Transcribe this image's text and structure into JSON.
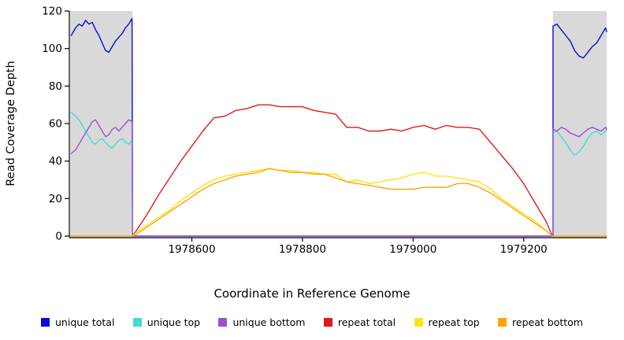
{
  "chart_data": {
    "type": "line",
    "title": "",
    "xlabel": "Coordinate in Reference Genome",
    "ylabel": "Read Coverage Depth",
    "xlim": [
      1978380,
      1979350
    ],
    "ylim": [
      0,
      120
    ],
    "xticks": [
      1978600,
      1978800,
      1979000,
      1979200
    ],
    "yticks": [
      0,
      20,
      40,
      60,
      80,
      100,
      120
    ],
    "grid": false,
    "legend_position": "bottom",
    "background_color": "#ffffff",
    "shaded_region_color": "#d9d9d9",
    "shaded_regions": [
      {
        "x0": 1978380,
        "x1": 1978493,
        "color": "#d9d9d9"
      },
      {
        "x0": 1979253,
        "x1": 1979350,
        "color": "#d9d9d9"
      }
    ],
    "series": [
      {
        "name": "unique total",
        "color": "#0b0bd6",
        "points": [
          [
            1978382,
            107
          ],
          [
            1978390,
            111
          ],
          [
            1978396,
            113
          ],
          [
            1978402,
            112
          ],
          [
            1978408,
            115
          ],
          [
            1978414,
            113
          ],
          [
            1978420,
            114
          ],
          [
            1978426,
            110
          ],
          [
            1978432,
            107
          ],
          [
            1978438,
            103
          ],
          [
            1978444,
            99
          ],
          [
            1978450,
            98
          ],
          [
            1978456,
            101
          ],
          [
            1978462,
            104
          ],
          [
            1978468,
            106
          ],
          [
            1978474,
            108
          ],
          [
            1978480,
            111
          ],
          [
            1978486,
            113
          ],
          [
            1978492,
            116
          ],
          [
            1978493,
            0
          ],
          [
            1979253,
            0
          ],
          [
            1979253,
            112
          ],
          [
            1979260,
            113
          ],
          [
            1979268,
            110
          ],
          [
            1979276,
            107
          ],
          [
            1979284,
            104
          ],
          [
            1979292,
            99
          ],
          [
            1979300,
            96
          ],
          [
            1979308,
            95
          ],
          [
            1979316,
            98
          ],
          [
            1979324,
            101
          ],
          [
            1979332,
            103
          ],
          [
            1979340,
            107
          ],
          [
            1979348,
            111
          ],
          [
            1979350,
            109
          ]
        ]
      },
      {
        "name": "unique top",
        "color": "#45dcd1",
        "points": [
          [
            1978382,
            66
          ],
          [
            1978390,
            64
          ],
          [
            1978396,
            62
          ],
          [
            1978402,
            59
          ],
          [
            1978408,
            56
          ],
          [
            1978414,
            53
          ],
          [
            1978420,
            50
          ],
          [
            1978426,
            49
          ],
          [
            1978432,
            51
          ],
          [
            1978438,
            52
          ],
          [
            1978444,
            50
          ],
          [
            1978450,
            48
          ],
          [
            1978456,
            47
          ],
          [
            1978462,
            49
          ],
          [
            1978468,
            51
          ],
          [
            1978474,
            52
          ],
          [
            1978480,
            50
          ],
          [
            1978486,
            49
          ],
          [
            1978492,
            51
          ],
          [
            1978493,
            0
          ],
          [
            1979253,
            0
          ],
          [
            1979253,
            55
          ],
          [
            1979260,
            56
          ],
          [
            1979268,
            53
          ],
          [
            1979276,
            50
          ],
          [
            1979284,
            46
          ],
          [
            1979292,
            43
          ],
          [
            1979300,
            45
          ],
          [
            1979308,
            48
          ],
          [
            1979316,
            52
          ],
          [
            1979324,
            55
          ],
          [
            1979332,
            56
          ],
          [
            1979340,
            54
          ],
          [
            1979348,
            56
          ],
          [
            1979350,
            57
          ]
        ]
      },
      {
        "name": "unique bottom",
        "color": "#9a4fd6",
        "points": [
          [
            1978382,
            44
          ],
          [
            1978390,
            46
          ],
          [
            1978396,
            49
          ],
          [
            1978402,
            52
          ],
          [
            1978408,
            55
          ],
          [
            1978414,
            58
          ],
          [
            1978420,
            61
          ],
          [
            1978426,
            62
          ],
          [
            1978432,
            59
          ],
          [
            1978438,
            56
          ],
          [
            1978444,
            53
          ],
          [
            1978450,
            54
          ],
          [
            1978456,
            57
          ],
          [
            1978462,
            58
          ],
          [
            1978468,
            56
          ],
          [
            1978474,
            58
          ],
          [
            1978480,
            60
          ],
          [
            1978486,
            62
          ],
          [
            1978492,
            61
          ],
          [
            1978493,
            0
          ],
          [
            1979253,
            0
          ],
          [
            1979253,
            57
          ],
          [
            1979260,
            56
          ],
          [
            1979268,
            58
          ],
          [
            1979276,
            57
          ],
          [
            1979284,
            55
          ],
          [
            1979292,
            54
          ],
          [
            1979300,
            53
          ],
          [
            1979308,
            55
          ],
          [
            1979316,
            57
          ],
          [
            1979324,
            58
          ],
          [
            1979332,
            57
          ],
          [
            1979340,
            56
          ],
          [
            1979348,
            58
          ],
          [
            1979350,
            57
          ]
        ]
      },
      {
        "name": "repeat total",
        "color": "#e01a1a",
        "points": [
          [
            1978492,
            0
          ],
          [
            1978500,
            3
          ],
          [
            1978520,
            12
          ],
          [
            1978540,
            22
          ],
          [
            1978560,
            31
          ],
          [
            1978580,
            40
          ],
          [
            1978600,
            48
          ],
          [
            1978620,
            56
          ],
          [
            1978640,
            63
          ],
          [
            1978660,
            64
          ],
          [
            1978680,
            67
          ],
          [
            1978700,
            68
          ],
          [
            1978720,
            70
          ],
          [
            1978740,
            70
          ],
          [
            1978760,
            69
          ],
          [
            1978780,
            69
          ],
          [
            1978800,
            69
          ],
          [
            1978820,
            67
          ],
          [
            1978840,
            66
          ],
          [
            1978860,
            65
          ],
          [
            1978880,
            58
          ],
          [
            1978900,
            58
          ],
          [
            1978920,
            56
          ],
          [
            1978940,
            56
          ],
          [
            1978960,
            57
          ],
          [
            1978980,
            56
          ],
          [
            1979000,
            58
          ],
          [
            1979020,
            59
          ],
          [
            1979040,
            57
          ],
          [
            1979060,
            59
          ],
          [
            1979080,
            58
          ],
          [
            1979100,
            58
          ],
          [
            1979120,
            57
          ],
          [
            1979140,
            50
          ],
          [
            1979160,
            43
          ],
          [
            1979180,
            36
          ],
          [
            1979200,
            28
          ],
          [
            1979220,
            18
          ],
          [
            1979240,
            8
          ],
          [
            1979252,
            0
          ]
        ]
      },
      {
        "name": "repeat top",
        "color": "#ffe214",
        "points": [
          [
            1978492,
            0
          ],
          [
            1978500,
            2
          ],
          [
            1978520,
            6
          ],
          [
            1978540,
            10
          ],
          [
            1978560,
            14
          ],
          [
            1978580,
            19
          ],
          [
            1978600,
            23
          ],
          [
            1978620,
            27
          ],
          [
            1978640,
            30
          ],
          [
            1978660,
            32
          ],
          [
            1978680,
            33
          ],
          [
            1978700,
            34
          ],
          [
            1978720,
            35
          ],
          [
            1978740,
            36
          ],
          [
            1978760,
            35
          ],
          [
            1978780,
            35
          ],
          [
            1978800,
            34
          ],
          [
            1978820,
            34
          ],
          [
            1978840,
            33
          ],
          [
            1978860,
            33
          ],
          [
            1978880,
            29
          ],
          [
            1978900,
            30
          ],
          [
            1978920,
            28
          ],
          [
            1978940,
            29
          ],
          [
            1978960,
            30
          ],
          [
            1978980,
            31
          ],
          [
            1979000,
            33
          ],
          [
            1979020,
            34
          ],
          [
            1979040,
            32
          ],
          [
            1979060,
            32
          ],
          [
            1979080,
            31
          ],
          [
            1979100,
            30
          ],
          [
            1979120,
            29
          ],
          [
            1979140,
            25
          ],
          [
            1979160,
            20
          ],
          [
            1979180,
            16
          ],
          [
            1979200,
            12
          ],
          [
            1979220,
            8
          ],
          [
            1979240,
            3
          ],
          [
            1979252,
            0
          ]
        ]
      },
      {
        "name": "repeat bottom",
        "color": "#ffa500",
        "points": [
          [
            1978380,
            0
          ],
          [
            1978492,
            0
          ],
          [
            1978500,
            1
          ],
          [
            1978520,
            5
          ],
          [
            1978540,
            9
          ],
          [
            1978560,
            13
          ],
          [
            1978580,
            17
          ],
          [
            1978600,
            21
          ],
          [
            1978620,
            25
          ],
          [
            1978640,
            28
          ],
          [
            1978660,
            30
          ],
          [
            1978680,
            32
          ],
          [
            1978700,
            33
          ],
          [
            1978720,
            34
          ],
          [
            1978740,
            36
          ],
          [
            1978760,
            35
          ],
          [
            1978780,
            34
          ],
          [
            1978800,
            34
          ],
          [
            1978820,
            33
          ],
          [
            1978840,
            33
          ],
          [
            1978860,
            31
          ],
          [
            1978880,
            29
          ],
          [
            1978900,
            28
          ],
          [
            1978920,
            27
          ],
          [
            1978940,
            26
          ],
          [
            1978960,
            25
          ],
          [
            1978980,
            25
          ],
          [
            1979000,
            25
          ],
          [
            1979020,
            26
          ],
          [
            1979040,
            26
          ],
          [
            1979060,
            26
          ],
          [
            1979080,
            28
          ],
          [
            1979100,
            28
          ],
          [
            1979120,
            26
          ],
          [
            1979140,
            23
          ],
          [
            1979160,
            19
          ],
          [
            1979180,
            15
          ],
          [
            1979200,
            11
          ],
          [
            1979220,
            7
          ],
          [
            1979240,
            3
          ],
          [
            1979252,
            0
          ],
          [
            1979350,
            0
          ]
        ]
      }
    ]
  }
}
